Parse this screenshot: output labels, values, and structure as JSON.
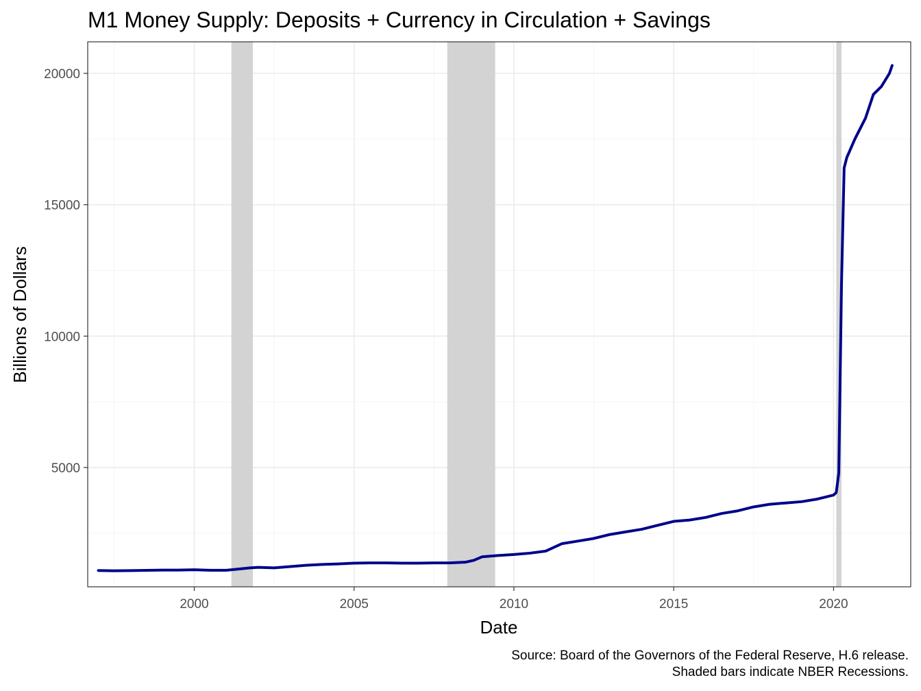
{
  "chart_data": {
    "type": "line",
    "title": "M1 Money Supply: Deposits + Currency in Circulation + Savings",
    "xlabel": "Date",
    "ylabel": "Billions of Dollars",
    "caption": [
      "Source: Board of the Governors of the Federal Reserve, H.6 release.",
      "Shaded bars indicate NBER Recessions."
    ],
    "xlim": [
      "1996-09-01",
      "2022-06-01"
    ],
    "ylim": [
      460,
      21200
    ],
    "x_ticks": [
      {
        "value": "2000-01-01",
        "label": "2000"
      },
      {
        "value": "2005-01-01",
        "label": "2005"
      },
      {
        "value": "2010-01-01",
        "label": "2010"
      },
      {
        "value": "2015-01-01",
        "label": "2015"
      },
      {
        "value": "2020-01-01",
        "label": "2020"
      }
    ],
    "y_ticks": [
      {
        "value": 5000,
        "label": "5000"
      },
      {
        "value": 10000,
        "label": "10000"
      },
      {
        "value": 15000,
        "label": "15000"
      },
      {
        "value": 20000,
        "label": "20000"
      }
    ],
    "grid": true,
    "recessions": [
      {
        "start": "2001-03-01",
        "end": "2001-11-01"
      },
      {
        "start": "2007-12-01",
        "end": "2009-06-01"
      },
      {
        "start": "2020-02-01",
        "end": "2020-04-01"
      }
    ],
    "colors": {
      "line": "#00008b",
      "recession": "#d3d3d3",
      "grid_major": "#ebebeb",
      "grid_minor": "#f5f5f5",
      "panel_border": "#333333",
      "tick_label": "#4d4d4d"
    },
    "series": [
      {
        "x": [
          "1997-01-01",
          "1997-07-01",
          "1998-01-01",
          "1998-07-01",
          "1999-01-01",
          "1999-07-01",
          "2000-01-01",
          "2000-07-01",
          "2001-01-01",
          "2001-04-01",
          "2001-10-01",
          "2002-01-01",
          "2002-07-01",
          "2003-01-01",
          "2003-07-01",
          "2004-01-01",
          "2004-07-01",
          "2005-01-01",
          "2005-07-01",
          "2006-01-01",
          "2006-07-01",
          "2007-01-01",
          "2007-07-01",
          "2008-01-01",
          "2008-07-01",
          "2008-10-01",
          "2009-01-01",
          "2009-07-01",
          "2010-01-01",
          "2010-07-01",
          "2011-01-01",
          "2011-07-01",
          "2012-01-01",
          "2012-07-01",
          "2013-01-01",
          "2013-07-01",
          "2014-01-01",
          "2014-07-01",
          "2015-01-01",
          "2015-07-01",
          "2016-01-01",
          "2016-07-01",
          "2017-01-01",
          "2017-07-01",
          "2018-01-01",
          "2018-07-01",
          "2019-01-01",
          "2019-07-01",
          "2020-01-01",
          "2020-02-01",
          "2020-03-01",
          "2020-04-01",
          "2020-05-01",
          "2020-06-01",
          "2020-09-01",
          "2021-01-01",
          "2021-04-01",
          "2021-07-01",
          "2021-10-01",
          "2021-11-01"
        ],
        "values": [
          1080,
          1070,
          1075,
          1085,
          1095,
          1095,
          1110,
          1090,
          1090,
          1120,
          1180,
          1200,
          1180,
          1230,
          1280,
          1310,
          1330,
          1360,
          1370,
          1370,
          1360,
          1360,
          1370,
          1370,
          1400,
          1470,
          1600,
          1650,
          1690,
          1740,
          1820,
          2100,
          2200,
          2300,
          2450,
          2550,
          2650,
          2800,
          2950,
          3000,
          3100,
          3250,
          3350,
          3500,
          3600,
          3650,
          3700,
          3800,
          3950,
          4050,
          4800,
          12000,
          16400,
          16800,
          17500,
          18300,
          19200,
          19500,
          20000,
          20300
        ]
      }
    ]
  }
}
